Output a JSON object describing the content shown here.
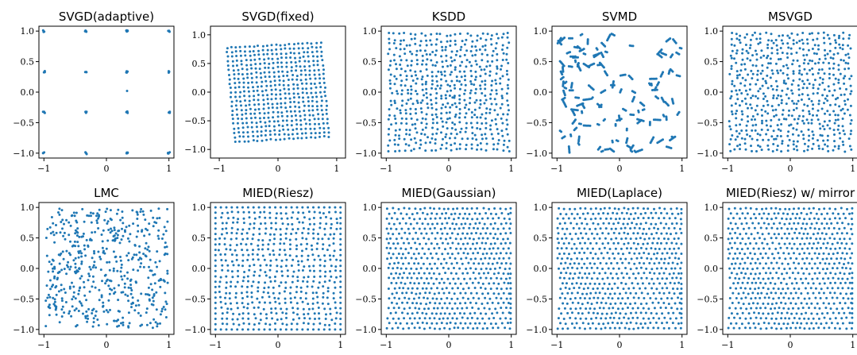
{
  "figure": {
    "point_color": "#1f77b4"
  },
  "chart_data": [
    {
      "type": "scatter",
      "title": "SVGD(adaptive)",
      "pattern": "grid4",
      "xlim": [
        -1.08,
        1.08
      ],
      "ylim": [
        -1.08,
        1.08
      ],
      "xticks": [
        -1,
        0,
        1
      ],
      "yticks": [
        -1.0,
        -0.5,
        0.0,
        0.5,
        1.0
      ],
      "xtick_labels": [
        "−1",
        "0",
        "1"
      ],
      "ytick_labels": [
        "−1.0",
        "−0.5",
        "0.0",
        "0.5",
        "1.0"
      ],
      "cluster_centers": [
        -1,
        -0.33,
        0.33,
        1
      ]
    },
    {
      "type": "scatter",
      "title": "SVGD(fixed)",
      "pattern": "rotated_lattice",
      "xlim": [
        -1.15,
        1.15
      ],
      "ylim": [
        -1.15,
        1.15
      ],
      "xticks": [
        -1,
        0,
        1
      ],
      "yticks": [
        -1.0,
        -0.5,
        0.0,
        0.5,
        1.0
      ],
      "xtick_labels": [
        "−1",
        "0",
        "1"
      ],
      "ytick_labels": [
        "−1.0",
        "−0.5",
        "0.0",
        "0.5",
        "1.0"
      ],
      "approx_extent": [
        -0.85,
        0.9
      ]
    },
    {
      "type": "scatter",
      "title": "KSDD",
      "pattern": "radial_lattice",
      "xlim": [
        -1.08,
        1.08
      ],
      "ylim": [
        -1.08,
        1.08
      ],
      "xticks": [
        -1,
        0,
        1
      ],
      "yticks": [
        -1.0,
        -0.5,
        0.0,
        0.5,
        1.0
      ],
      "xtick_labels": [
        "−1",
        "0",
        "1"
      ],
      "ytick_labels": [
        "−1.0",
        "−0.5",
        "0.0",
        "0.5",
        "1.0"
      ],
      "approx_extent": [
        -0.95,
        0.95
      ]
    },
    {
      "type": "scatter",
      "title": "SVMD",
      "pattern": "clustered_random",
      "xlim": [
        -1.08,
        1.08
      ],
      "ylim": [
        -1.08,
        1.08
      ],
      "xticks": [
        -1,
        0,
        1
      ],
      "yticks": [
        -1.0,
        -0.5,
        0.0,
        0.5,
        1.0
      ],
      "xtick_labels": [
        "−1",
        "0",
        "1"
      ],
      "ytick_labels": [
        "−1.0",
        "−0.5",
        "0.0",
        "0.5",
        "1.0"
      ],
      "approx_extent": [
        -1,
        1
      ]
    },
    {
      "type": "scatter",
      "title": "MSVGD",
      "pattern": "jittered_lattice",
      "xlim": [
        -1.08,
        1.08
      ],
      "ylim": [
        -1.08,
        1.08
      ],
      "xticks": [
        -1,
        0,
        1
      ],
      "yticks": [
        -1.0,
        -0.5,
        0.0,
        0.5,
        1.0
      ],
      "xtick_labels": [
        "−1",
        "0",
        "1"
      ],
      "ytick_labels": [
        "−1.0",
        "−0.5",
        "0.0",
        "0.5",
        "1.0"
      ],
      "approx_extent": [
        -0.95,
        0.95
      ]
    },
    {
      "type": "scatter",
      "title": "LMC",
      "pattern": "uniform_random",
      "xlim": [
        -1.08,
        1.08
      ],
      "ylim": [
        -1.08,
        1.08
      ],
      "xticks": [
        -1,
        0,
        1
      ],
      "yticks": [
        -1.0,
        -0.5,
        0.0,
        0.5,
        1.0
      ],
      "xtick_labels": [
        "−1",
        "0",
        "1"
      ],
      "ytick_labels": [
        "−1.0",
        "−0.5",
        "0.0",
        "0.5",
        "1.0"
      ],
      "approx_extent": [
        -1,
        1
      ]
    },
    {
      "type": "scatter",
      "title": "MIED(Riesz)",
      "pattern": "bordered_lattice",
      "xlim": [
        -1.08,
        1.08
      ],
      "ylim": [
        -1.08,
        1.08
      ],
      "xticks": [
        -1,
        0,
        1
      ],
      "yticks": [
        -1.0,
        -0.5,
        0.0,
        0.5,
        1.0
      ],
      "xtick_labels": [
        "−1",
        "0",
        "1"
      ],
      "ytick_labels": [
        "−1.0",
        "−0.5",
        "0.0",
        "0.5",
        "1.0"
      ],
      "approx_extent": [
        -1,
        1
      ]
    },
    {
      "type": "scatter",
      "title": "MIED(Gaussian)",
      "pattern": "hex_lattice",
      "xlim": [
        -1.08,
        1.08
      ],
      "ylim": [
        -1.08,
        1.08
      ],
      "xticks": [
        -1,
        0,
        1
      ],
      "yticks": [
        -1.0,
        -0.5,
        0.0,
        0.5,
        1.0
      ],
      "xtick_labels": [
        "−1",
        "0",
        "1"
      ],
      "ytick_labels": [
        "−1.0",
        "−0.5",
        "0.0",
        "0.5",
        "1.0"
      ],
      "approx_extent": [
        -0.98,
        0.98
      ]
    },
    {
      "type": "scatter",
      "title": "MIED(Laplace)",
      "pattern": "hex_lattice",
      "xlim": [
        -1.08,
        1.08
      ],
      "ylim": [
        -1.08,
        1.08
      ],
      "xticks": [
        -1,
        0,
        1
      ],
      "yticks": [
        -1.0,
        -0.5,
        0.0,
        0.5,
        1.0
      ],
      "xtick_labels": [
        "−1",
        "0",
        "1"
      ],
      "ytick_labels": [
        "−1.0",
        "−0.5",
        "0.0",
        "0.5",
        "1.0"
      ],
      "approx_extent": [
        -0.98,
        0.98
      ]
    },
    {
      "type": "scatter",
      "title": "MIED(Riesz) w/ mirror",
      "pattern": "hex_lattice",
      "xlim": [
        -1.08,
        1.08
      ],
      "ylim": [
        -1.08,
        1.08
      ],
      "xticks": [
        -1,
        0,
        1
      ],
      "yticks": [
        -1.0,
        -0.5,
        0.0,
        0.5,
        1.0
      ],
      "xtick_labels": [
        "−1",
        "0",
        "1"
      ],
      "ytick_labels": [
        "−1.0",
        "−0.5",
        "0.0",
        "0.5",
        "1.0"
      ],
      "approx_extent": [
        -0.98,
        0.98
      ]
    }
  ]
}
